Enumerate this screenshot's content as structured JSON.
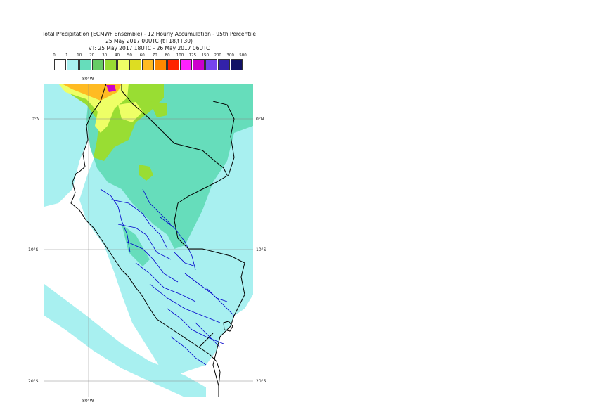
{
  "title": {
    "line1": "Total Precipitation (ECMWF Ensemble) - 12 Hourly Accumulation - 95th Percentile",
    "line2": "25 May 2017 00UTC (t+18,t+30)",
    "line3": "VT: 25 May 2017 18UTC - 26 May 2017 06UTC"
  },
  "legend": {
    "thresholds": [
      "0",
      "1",
      "10",
      "20",
      "30",
      "40",
      "50",
      "60",
      "70",
      "80",
      "100",
      "125",
      "150",
      "200",
      "300",
      "500"
    ],
    "colors": [
      "#ffffff",
      "#a8f0f0",
      "#66ddbb",
      "#66cc66",
      "#99dd33",
      "#eeff66",
      "#dddd22",
      "#ffbb22",
      "#ff8800",
      "#ff2200",
      "#ff22ff",
      "#cc00cc",
      "#7744ee",
      "#3322aa",
      "#111166"
    ]
  },
  "map": {
    "labels": {
      "lon_top": "80°W",
      "lon_bottom": "80°W",
      "lat_0_left": "0°N",
      "lat_0_right": "0°N",
      "lat_10_left": "10°S",
      "lat_10_right": "10°S",
      "lat_20_left": "20°S",
      "lat_20_right": "20°S"
    },
    "colors": {
      "land_rain": "#a8f0f0",
      "heavier_rain": "#66ddbb",
      "moderate": "#99dd33",
      "yellow": "#eeff66",
      "orange": "#ffbb22",
      "coast": "#000000",
      "admin_border": "#0000cc",
      "grid": "#888888"
    }
  }
}
